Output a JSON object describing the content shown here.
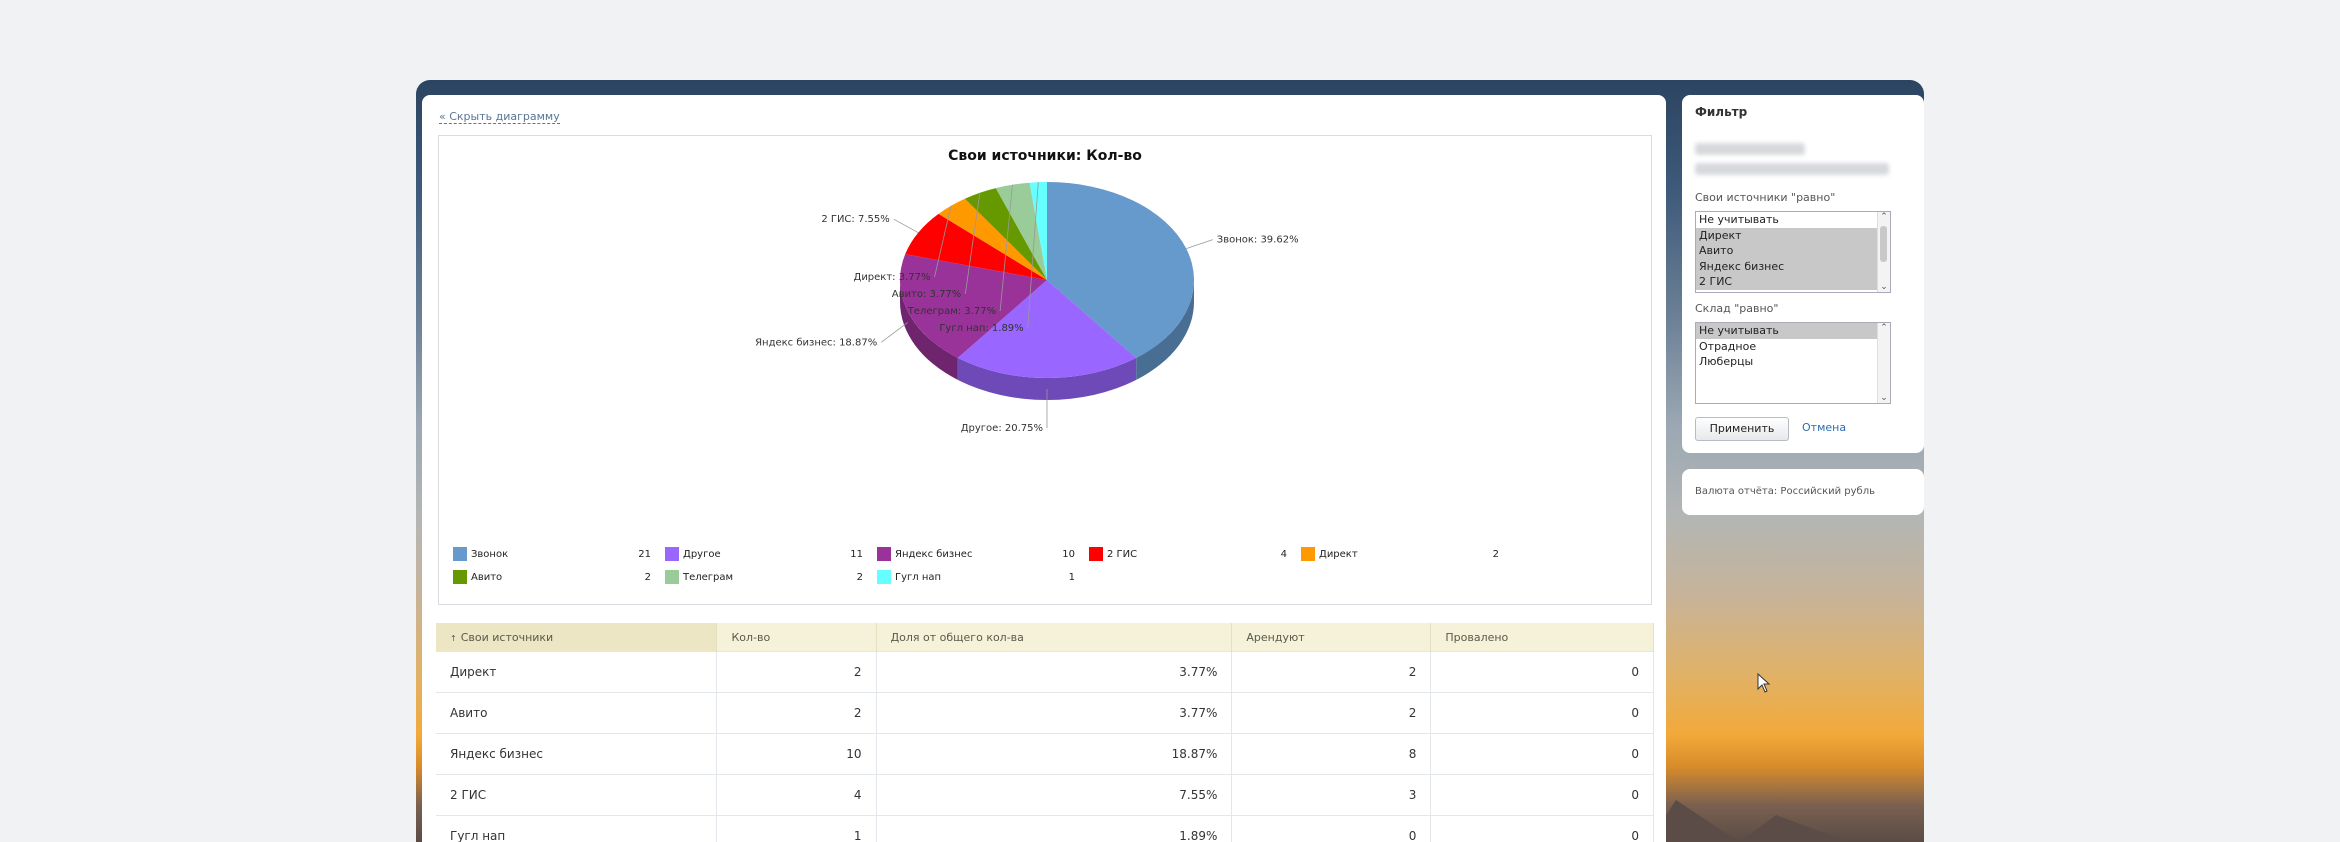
{
  "chart_toggle_label": "« Скрыть диаграмму",
  "chart_data": {
    "type": "pie",
    "title": "Свои источники: Кол-во",
    "categories": [
      "Звонок",
      "Другое",
      "Яндекс бизнес",
      "2 ГИС",
      "Директ",
      "Авито",
      "Телеграм",
      "Гугл нап"
    ],
    "values": [
      21,
      11,
      10,
      4,
      2,
      2,
      2,
      1
    ],
    "percent_labels": [
      "39.62%",
      "20.75%",
      "18.87%",
      "7.55%",
      "3.77%",
      "3.77%",
      "3.77%",
      "1.89%"
    ],
    "colors": [
      "#6699cc",
      "#9966ff",
      "#993399",
      "#ff0000",
      "#ff9900",
      "#669900",
      "#99cc99",
      "#66ffff"
    ],
    "slice_labels": [
      "Звонок: 39.62%",
      "Другое: 20.75%",
      "Яндекс бизнес: 18.87%",
      "2 ГИС: 7.55%",
      "Директ: 3.77%",
      "Авито: 3.77%",
      "Телеграм: 3.77%",
      "Гугл нап: 1.89%"
    ]
  },
  "table": {
    "headers": [
      "Свои источники",
      "Кол-во",
      "Доля от общего кол-ва",
      "Арендуют",
      "Провалено"
    ],
    "sort_indicator": "↑",
    "rows": [
      [
        "Директ",
        "2",
        "3.77%",
        "2",
        "0"
      ],
      [
        "Авито",
        "2",
        "3.77%",
        "2",
        "0"
      ],
      [
        "Яндекс бизнес",
        "10",
        "18.87%",
        "8",
        "0"
      ],
      [
        "2 ГИС",
        "4",
        "7.55%",
        "3",
        "0"
      ],
      [
        "Гугл нап",
        "1",
        "1.89%",
        "0",
        "0"
      ]
    ]
  },
  "filter": {
    "title": "Фильтр",
    "sources_label": "Свои источники \"равно\"",
    "sources_options": [
      {
        "label": "Не учитывать",
        "selected": false
      },
      {
        "label": "Директ",
        "selected": true
      },
      {
        "label": "Авито",
        "selected": true
      },
      {
        "label": "Яндекс бизнес",
        "selected": true
      },
      {
        "label": "2 ГИС",
        "selected": true
      }
    ],
    "warehouse_label": "Склад \"равно\"",
    "warehouse_options": [
      {
        "label": "Не учитывать",
        "selected": true
      },
      {
        "label": "Отрадное",
        "selected": false
      },
      {
        "label": "Люберцы",
        "selected": false
      }
    ],
    "apply_label": "Применить",
    "cancel_label": "Отмена"
  },
  "currency_label": "Валюта отчёта: Российский рубль"
}
